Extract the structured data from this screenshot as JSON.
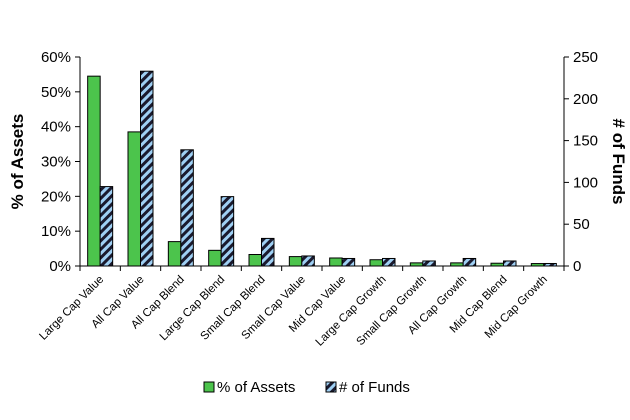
{
  "chart_data": {
    "type": "bar",
    "categories": [
      "Large Cap Value",
      "All Cap Value",
      "All Cap Blend",
      "Large Cap Blend",
      "Small Cap Blend",
      "Small Cap Value",
      "Mid Cap Value",
      "Large Cap Growth",
      "Small Cap Growth",
      "All Cap Growth",
      "Mid Cap Blend",
      "Mid Cap Growth"
    ],
    "series": [
      {
        "name": "% of Assets",
        "axis": "left",
        "values": [
          54.5,
          38.5,
          7.0,
          4.5,
          3.3,
          2.7,
          2.3,
          1.8,
          0.9,
          0.9,
          0.8,
          0.7
        ],
        "color": "#4cc44c",
        "pattern": "solid"
      },
      {
        "name": "# of Funds",
        "axis": "right",
        "values": [
          95,
          233,
          139,
          83,
          33,
          12,
          9,
          9,
          6,
          9,
          6,
          3
        ],
        "color": "#8fc8f0",
        "pattern": "diagonal-stripe"
      }
    ],
    "y_left": {
      "label": "% of Assets",
      "ylim": [
        0,
        60
      ],
      "ticks": [
        "0%",
        "10%",
        "20%",
        "30%",
        "40%",
        "50%",
        "60%"
      ]
    },
    "y_right": {
      "label": "# of Funds",
      "ylim": [
        0,
        250
      ],
      "ticks": [
        "0",
        "50",
        "100",
        "150",
        "200",
        "250"
      ]
    },
    "legend": {
      "position": "bottom"
    },
    "grid": false
  }
}
